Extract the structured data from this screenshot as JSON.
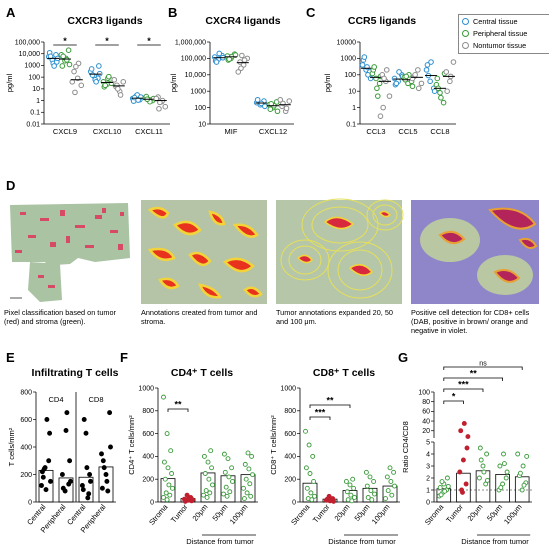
{
  "panels": {
    "A": {
      "letter": "A",
      "title": "CXCR3 ligands"
    },
    "B": {
      "letter": "B",
      "title": "CXCR4 ligands"
    },
    "C": {
      "letter": "C",
      "title": "CCR5 ligands"
    },
    "D": {
      "letter": "D"
    },
    "E": {
      "letter": "E",
      "title": "Infiltrating T cells"
    },
    "F": {
      "letter": "F",
      "title_cd4": "CD4⁺ T cells",
      "title_cd8": "CD8⁺ T cells"
    },
    "G": {
      "letter": "G"
    }
  },
  "legend": {
    "items": [
      {
        "label": "Central tissue",
        "color": "#2c8fd0"
      },
      {
        "label": "Peripheral tissue",
        "color": "#3a9a3a"
      },
      {
        "label": "Nontumor tissue",
        "color": "#8c8c8c"
      }
    ]
  },
  "captions": [
    "Pixel classification based on tumor (red) and stroma (green).",
    "Annotations created from tumor and stroma.",
    "Tumor annotations expanded 20, 50 and 100 μm.",
    "Positive cell detection for CD8+ cells (DAB, positive in brown/ orange and negative in violet."
  ],
  "colors": {
    "central": "#2c8fd0",
    "peripheral": "#3a9a3a",
    "nontumor": "#8c8c8c",
    "stroma": "#3a9a3a",
    "tumor": "#c0202f"
  },
  "chart_data": [
    {
      "id": "A",
      "type": "scatter",
      "title": "CXCR3 ligands",
      "ylabel": "pg/ml",
      "yscale": "log",
      "ylim": [
        0.01,
        100000
      ],
      "yticks": [
        "100,000",
        "10,000",
        "1000",
        "100",
        "10",
        "1",
        "0.1",
        "0.01"
      ],
      "categories": [
        "CXCL9",
        "CXCL10",
        "CXCL11"
      ],
      "series": [
        {
          "name": "Central tissue",
          "values": [
            [
              5500,
              3000,
              8000,
              12000,
              1500,
              2000,
              6000,
              900,
              4000
            ],
            [
              300,
              120,
              80,
              500,
              60,
              900,
              150,
              40,
              200
            ],
            [
              1.5,
              2.5,
              1.2,
              0.9,
              3,
              2,
              1.8,
              1.1
            ]
          ],
          "median": [
            4000,
            180,
            1.6
          ]
        },
        {
          "name": "Peripheral tissue",
          "values": [
            [
              8000,
              2500,
              20000,
              900,
              4000,
              1200,
              6000,
              3000
            ],
            [
              40,
              25,
              60,
              15,
              80,
              30,
              20,
              110
            ],
            [
              1.8,
              1.2,
              1,
              2.2,
              0.8,
              1.5,
              1.3
            ]
          ],
          "median": [
            3500,
            35,
            1.3
          ]
        },
        {
          "name": "Nontumor tissue",
          "values": [
            [
              300,
              80,
              20,
              5,
              1500,
              40,
              800
            ],
            [
              15,
              6,
              40,
              20,
              3,
              60,
              10
            ],
            [
              2,
              0.8,
              0.3,
              0.2,
              1,
              1.5,
              0.7
            ]
          ],
          "median": [
            60,
            18,
            1.0
          ]
        }
      ],
      "significance": [
        {
          "between": [
            "CXCL9 central",
            "CXCL9 nontumor"
          ],
          "label": "*"
        },
        {
          "between": [
            "CXCL10 central",
            "CXCL10 nontumor"
          ],
          "label": "*"
        },
        {
          "between": [
            "CXCL11 central",
            "CXCL11 nontumor"
          ],
          "label": "*"
        }
      ]
    },
    {
      "id": "B",
      "type": "scatter",
      "title": "CXCR4 ligands",
      "ylabel": "pg/ml",
      "yscale": "log",
      "ylim": [
        10,
        1000000
      ],
      "yticks": [
        "1,000,000",
        "100,000",
        "10,000",
        "1000",
        "100",
        "10"
      ],
      "categories": [
        "MIF",
        "CXCL12"
      ],
      "series": [
        {
          "name": "Central tissue",
          "values": [
            [
              120000,
              90000,
              150000,
              70000,
              200000,
              110000,
              60000
            ],
            [
              200,
              150,
              250,
              300,
              180,
              120
            ]
          ],
          "median": [
            110000,
            190
          ]
        },
        {
          "name": "Peripheral tissue",
          "values": [
            [
              140000,
              100000,
              180000,
              80000,
              130000,
              160000,
              90000
            ],
            [
              150,
              100,
              220,
              80,
              130,
              60,
              170
            ]
          ],
          "median": [
            125000,
            130
          ]
        },
        {
          "name": "Nontumor tissue",
          "values": [
            [
              60000,
              40000,
              100000,
              25000,
              80000,
              15000,
              150000
            ],
            [
              120,
              60,
              250,
              180,
              90,
              300
            ]
          ],
          "median": [
            55000,
            150
          ]
        }
      ]
    },
    {
      "id": "C",
      "type": "scatter",
      "title": "CCR5 ligands",
      "ylabel": "pg/ml",
      "yscale": "log",
      "ylim": [
        0.1,
        10000
      ],
      "yticks": [
        "10000",
        "1000",
        "100",
        "10",
        "1",
        "0.1"
      ],
      "categories": [
        "CCL3",
        "CCL5",
        "CCL8"
      ],
      "series": [
        {
          "name": "Central tissue",
          "values": [
            [
              400,
              200,
              150,
              800,
              300,
              60,
              1200,
              100
            ],
            [
              60,
              40,
              100,
              25,
              150,
              80,
              30
            ],
            [
              200,
              40,
              15,
              400,
              600,
              10,
              90
            ]
          ],
          "median": [
            250,
            55,
            90
          ]
        },
        {
          "name": "Peripheral tissue",
          "values": [
            [
              120,
              60,
              30,
              200,
              15,
              80,
              300,
              5
            ],
            [
              70,
              30,
              40,
              50,
              100,
              20,
              80
            ],
            [
              25,
              8,
              2,
              60,
              4,
              120,
              15
            ]
          ],
          "median": [
            70,
            50,
            15
          ]
        },
        {
          "name": "Nontumor tissue",
          "values": [
            [
              100,
              40,
              5,
              1,
              200,
              0.3,
              60
            ],
            [
              80,
              200,
              30,
              100,
              15,
              60
            ],
            [
              150,
              40,
              600,
              10,
              80
            ]
          ],
          "median": [
            40,
            70,
            80
          ]
        }
      ]
    },
    {
      "id": "E",
      "type": "bar",
      "title": "Infiltrating T cells",
      "ylabel": "T cells/mm²",
      "ylim": [
        0,
        800
      ],
      "yticks": [
        0,
        200,
        400,
        600,
        800
      ],
      "groups": [
        "CD4",
        "CD8"
      ],
      "categories": [
        "Central",
        "Peripheral",
        "Central",
        "Peripheral"
      ],
      "values": [
        230,
        175,
        180,
        255
      ],
      "points": [
        [
          120,
          250,
          300,
          220,
          90,
          500,
          180,
          600,
          150,
          240
        ],
        [
          80,
          130,
          200,
          520,
          300,
          100,
          650,
          150
        ],
        [
          60,
          120,
          500,
          200,
          90,
          250,
          150,
          600,
          30
        ],
        [
          100,
          200,
          650,
          300,
          150,
          400,
          250,
          80,
          350
        ]
      ]
    },
    {
      "id": "F-CD4",
      "type": "bar",
      "title": "CD4⁺ T cells",
      "ylabel": "CD4⁺ T cells/mm²",
      "xlabel": "Distance from tumor",
      "ylim": [
        0,
        1000
      ],
      "yticks": [
        0,
        200,
        400,
        600,
        800,
        1000
      ],
      "categories": [
        "Stroma",
        "Tumor",
        "20μm",
        "50μm",
        "100μm"
      ],
      "values": [
        205,
        30,
        255,
        230,
        240
      ],
      "points": [
        [
          920,
          600,
          450,
          350,
          300,
          250,
          200,
          150,
          120,
          80,
          60,
          40,
          20
        ],
        [
          60,
          40,
          25,
          15,
          10,
          5,
          30,
          20
        ],
        [
          450,
          400,
          350,
          300,
          250,
          200,
          150,
          100,
          80,
          60,
          40
        ],
        [
          420,
          380,
          300,
          260,
          220,
          180,
          130,
          90,
          70,
          50
        ],
        [
          430,
          400,
          330,
          290,
          240,
          200,
          160,
          120,
          80,
          50,
          30
        ]
      ],
      "significance": [
        {
          "between": [
            "Stroma",
            "Tumor"
          ],
          "label": "**"
        }
      ]
    },
    {
      "id": "F-CD8",
      "type": "bar",
      "title": "CD8⁺ T cells",
      "ylabel": "CD8⁺ T cells/mm²",
      "xlabel": "Distance from tumor",
      "ylim": [
        0,
        1000
      ],
      "yticks": [
        0,
        200,
        400,
        600,
        800,
        1000
      ],
      "categories": [
        "Stroma",
        "Tumor",
        "20μm",
        "50μm",
        "100μm"
      ],
      "values": [
        165,
        25,
        100,
        120,
        140
      ],
      "points": [
        [
          620,
          500,
          400,
          300,
          250,
          180,
          120,
          80,
          50,
          30,
          20
        ],
        [
          50,
          30,
          15,
          10,
          5,
          25
        ],
        [
          200,
          180,
          150,
          120,
          90,
          60,
          40,
          20,
          10
        ],
        [
          260,
          220,
          180,
          140,
          100,
          70,
          40,
          20
        ],
        [
          300,
          260,
          220,
          180,
          140,
          100,
          60,
          30
        ]
      ],
      "significance": [
        {
          "between": [
            "Stroma",
            "Tumor"
          ],
          "label": "***"
        },
        {
          "between": [
            "Stroma",
            "20μm"
          ],
          "label": "**"
        }
      ]
    },
    {
      "id": "G",
      "type": "bar",
      "ylabel": "Ratio CD4/CD8",
      "xlabel": "Distance from tumor",
      "yscale": "broken",
      "ylim": [
        0,
        100
      ],
      "yticks": [
        0,
        1,
        2,
        3,
        4,
        5,
        20,
        40,
        60,
        80,
        100
      ],
      "categories": [
        "Stroma",
        "Tumor",
        "20μm",
        "50μm",
        "100μm"
      ],
      "values": [
        1.1,
        2.4,
        2.6,
        2.3,
        2.1
      ],
      "points": [
        [
          0.5,
          0.8,
          1,
          1.2,
          1.5,
          2,
          0.6,
          0.9,
          1.3,
          1.7
        ],
        [
          0.8,
          1.5,
          2.5,
          3.5,
          4.5,
          20,
          35,
          8,
          1
        ],
        [
          1.5,
          2,
          3,
          4,
          4.5,
          2.5,
          1.8,
          3.5
        ],
        [
          1,
          1.5,
          2,
          3,
          4,
          2.5,
          1.2,
          3.2
        ],
        [
          1,
          1.6,
          2.2,
          3,
          3.8,
          2.4,
          1.4,
          4
        ]
      ],
      "significance": [
        {
          "between": [
            "Stroma",
            "Tumor"
          ],
          "label": "*"
        },
        {
          "between": [
            "Stroma",
            "20μm"
          ],
          "label": "***"
        },
        {
          "between": [
            "Stroma",
            "50μm"
          ],
          "label": "**"
        },
        {
          "between": [
            "Stroma",
            "100μm"
          ],
          "label": "ns"
        }
      ]
    }
  ]
}
